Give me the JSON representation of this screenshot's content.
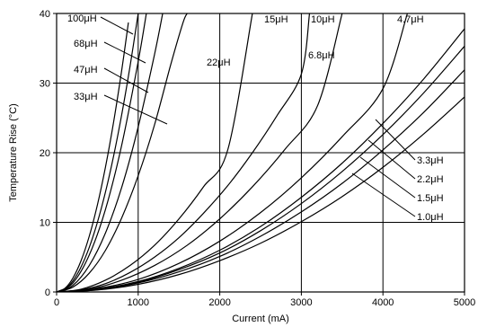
{
  "chart_data": {
    "type": "line",
    "title": "",
    "xlabel": "Current (mA)",
    "ylabel": "Temperature Rise (°C)",
    "xlim": [
      0,
      5000
    ],
    "ylim": [
      0,
      40
    ],
    "x_ticks": [
      "0",
      "1000",
      "2000",
      "3000",
      "4000",
      "5000"
    ],
    "y_ticks": [
      "0",
      "10",
      "20",
      "30",
      "40"
    ],
    "grid": true,
    "series": [
      {
        "name": "100μH",
        "x": [
          0,
          100,
          200,
          300,
          400,
          500,
          600,
          700,
          800,
          880
        ],
        "y": [
          0,
          0.5,
          2,
          4.5,
          8,
          12.5,
          18,
          24.5,
          32,
          38.7
        ]
      },
      {
        "name": "68μH",
        "x": [
          0,
          100,
          200,
          300,
          400,
          500,
          600,
          700,
          800,
          900,
          1000
        ],
        "y": [
          0,
          0.4,
          1.6,
          3.6,
          6.4,
          10,
          14.4,
          19.6,
          25.6,
          32.4,
          40
        ]
      },
      {
        "name": "47μH",
        "x": [
          0,
          200,
          400,
          600,
          800,
          1000,
          1100
        ],
        "y": [
          0,
          1.3,
          5.3,
          11.9,
          21.2,
          33.1,
          40
        ]
      },
      {
        "name": "33μH",
        "x": [
          0,
          200,
          400,
          600,
          800,
          1000,
          1200,
          1300
        ],
        "y": [
          0,
          0.95,
          3.8,
          8.5,
          15.1,
          23.7,
          34.1,
          40
        ]
      },
      {
        "name": "22μH",
        "x": [
          0,
          200,
          400,
          600,
          800,
          1000,
          1200,
          1400,
          1550,
          1600
        ],
        "y": [
          0,
          0.7,
          2.7,
          6,
          10.7,
          16.7,
          24,
          32.7,
          38.7,
          40
        ]
      },
      {
        "name": "15μH",
        "x": [
          0,
          300,
          600,
          900,
          1200,
          1500,
          1800,
          2100,
          2400
        ],
        "y": [
          0,
          0.4,
          1.7,
          3.8,
          6.7,
          10.5,
          15.1,
          20.5,
          40
        ]
      },
      {
        "name": "10μH",
        "x": [
          0,
          300,
          600,
          900,
          1200,
          1500,
          1800,
          2100,
          2400,
          2700,
          3000,
          3100
        ],
        "y": [
          0,
          0.3,
          1.2,
          2.8,
          5,
          7.8,
          11.3,
          15.3,
          20,
          25.3,
          31.3,
          40
        ]
      },
      {
        "name": "6.8μH",
        "x": [
          0,
          400,
          800,
          1200,
          1600,
          2000,
          2400,
          2800,
          3200,
          3500
        ],
        "y": [
          0,
          0.4,
          1.7,
          3.8,
          6.7,
          10.5,
          15.1,
          20.5,
          26.8,
          40
        ]
      },
      {
        "name": "4.7μH",
        "x": [
          0,
          500,
          1000,
          1500,
          2000,
          2500,
          3000,
          3500,
          4000,
          4300
        ],
        "y": [
          0,
          0.5,
          1.8,
          4.1,
          7.3,
          11.4,
          16.4,
          22.3,
          29.2,
          40
        ]
      },
      {
        "name": "3.3μH",
        "x": [
          0,
          500,
          1000,
          1500,
          2000,
          2500,
          3000,
          3500,
          4000,
          4500,
          5000
        ],
        "y": [
          0,
          0.4,
          1.5,
          3.4,
          6,
          9.4,
          13.6,
          18.5,
          24.2,
          30.6,
          37.8
        ]
      },
      {
        "name": "2.2μH",
        "x": [
          0,
          500,
          1000,
          1500,
          2000,
          2500,
          3000,
          3500,
          4000,
          4500,
          5000
        ],
        "y": [
          0,
          0.35,
          1.4,
          3.2,
          5.6,
          8.8,
          12.7,
          17.3,
          22.6,
          28.6,
          35.3
        ]
      },
      {
        "name": "1.5μH",
        "x": [
          0,
          500,
          1000,
          1500,
          2000,
          2500,
          3000,
          3500,
          4000,
          4500,
          5000
        ],
        "y": [
          0,
          0.3,
          1.3,
          2.9,
          5.1,
          8,
          11.5,
          15.6,
          20.4,
          25.8,
          31.9
        ]
      },
      {
        "name": "1.0μH",
        "x": [
          0,
          500,
          1000,
          1500,
          2000,
          2500,
          3000,
          3500,
          4000,
          4500,
          5000
        ],
        "y": [
          0,
          0.28,
          1.1,
          2.5,
          4.5,
          7,
          10.1,
          13.7,
          17.9,
          22.7,
          28
        ]
      }
    ]
  }
}
